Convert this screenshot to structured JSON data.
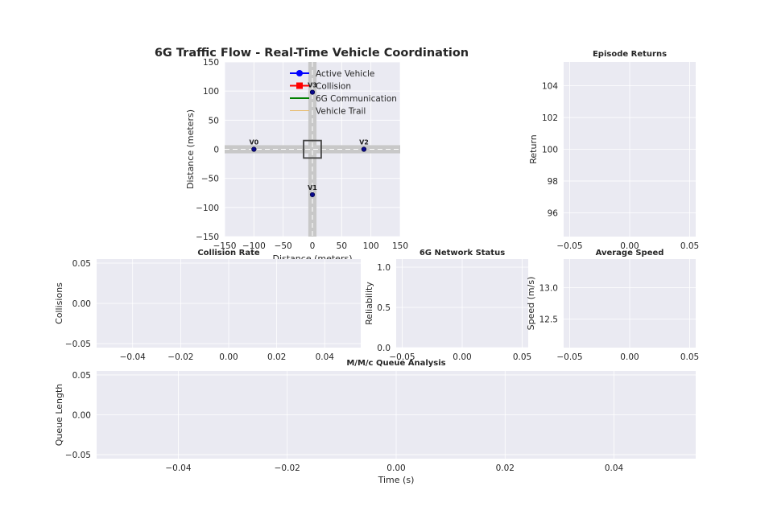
{
  "figure": {
    "background": "#ffffff",
    "axes_background": "#eaeaf2",
    "grid_color": "#ffffff"
  },
  "chart_data": [
    {
      "id": "traffic",
      "type": "scatter",
      "title": "6G Traffic Flow - Real-Time Vehicle Coordination",
      "xlabel": "Distance (meters)",
      "ylabel": "Distance (meters)",
      "xlim": [
        -150,
        150
      ],
      "ylim": [
        -150,
        150
      ],
      "xticks": [
        -150,
        -100,
        -50,
        0,
        50,
        100,
        150
      ],
      "yticks": [
        -150,
        -100,
        -50,
        0,
        50,
        100,
        150
      ],
      "tick_labels_x": [
        "−150",
        "−100",
        "−50",
        "0",
        "50",
        "100",
        "150"
      ],
      "tick_labels_y": [
        "−150",
        "−100",
        "−50",
        "0",
        "50",
        "100",
        "150"
      ],
      "grid": true,
      "road_color": "#c8c8c8",
      "intersection": {
        "half_size": 15,
        "color": "#444444"
      },
      "vehicles": [
        {
          "label": "V0",
          "x": -100,
          "y": 0
        },
        {
          "label": "V1",
          "x": 0,
          "y": -78
        },
        {
          "label": "V2",
          "x": 88,
          "y": 0
        },
        {
          "label": "V3",
          "x": 0,
          "y": 98
        }
      ],
      "vehicle_color": "#0a0a8c",
      "legend": {
        "position": "upper-center",
        "entries": [
          {
            "label": "Active Vehicle",
            "color": "#0000ff",
            "marker": "circle"
          },
          {
            "label": "Collision",
            "color": "#ff0000",
            "marker": "square"
          },
          {
            "label": "6G Communication",
            "color": "#008000",
            "marker": "none"
          },
          {
            "label": "Vehicle Trail",
            "color": "#e8b968",
            "marker": "none"
          }
        ]
      }
    },
    {
      "id": "returns",
      "type": "line",
      "title": "Episode Returns",
      "xlabel": "",
      "ylabel": "Return",
      "xlim": [
        -0.055,
        0.055
      ],
      "ylim": [
        94.5,
        105.5
      ],
      "xticks": [
        -0.05,
        0,
        0.05
      ],
      "yticks": [
        96,
        98,
        100,
        102,
        104
      ],
      "tick_labels_x": [
        "−0.05",
        "0.00",
        "0.05"
      ],
      "tick_labels_y": [
        "96",
        "98",
        "100",
        "102",
        "104"
      ],
      "grid": true,
      "series": []
    },
    {
      "id": "collision",
      "type": "line",
      "title": "Collision Rate",
      "xlabel": "",
      "ylabel": "Collisions",
      "xlim": [
        -0.055,
        0.055
      ],
      "ylim": [
        -0.055,
        0.055
      ],
      "xticks": [
        -0.04,
        -0.02,
        0,
        0.02,
        0.04
      ],
      "yticks": [
        -0.05,
        0,
        0.05
      ],
      "tick_labels_x": [
        "−0.04",
        "−0.02",
        "0.00",
        "0.02",
        "0.04"
      ],
      "tick_labels_y": [
        "−0.05",
        "0.00",
        "0.05"
      ],
      "grid": true,
      "series": []
    },
    {
      "id": "network",
      "type": "line",
      "title": "6G Network Status",
      "xlabel": "",
      "ylabel": "Reliability",
      "xlim": [
        -0.055,
        0.055
      ],
      "ylim": [
        0,
        1.1
      ],
      "xticks": [
        -0.05,
        0,
        0.05
      ],
      "yticks": [
        0,
        0.5,
        1
      ],
      "tick_labels_x": [
        "−0.05",
        "0.00",
        "0.05"
      ],
      "tick_labels_y": [
        "0.0",
        "0.5",
        "1.0"
      ],
      "grid": true,
      "series": []
    },
    {
      "id": "speed",
      "type": "line",
      "title": "Average Speed",
      "xlabel": "",
      "ylabel": "Speed (m/s)",
      "xlim": [
        -0.055,
        0.055
      ],
      "ylim": [
        12.05,
        13.45
      ],
      "xticks": [
        -0.05,
        0,
        0.05
      ],
      "yticks": [
        12.5,
        13
      ],
      "tick_labels_x": [
        "−0.05",
        "0.00",
        "0.05"
      ],
      "tick_labels_y": [
        "12.5",
        "13.0"
      ],
      "grid": true,
      "series": []
    },
    {
      "id": "queue",
      "type": "line",
      "title": "M/M/c Queue Analysis",
      "xlabel": "Time (s)",
      "ylabel": "Queue Length",
      "xlim": [
        -0.055,
        0.055
      ],
      "ylim": [
        -0.055,
        0.055
      ],
      "xticks": [
        -0.04,
        -0.02,
        0,
        0.02,
        0.04
      ],
      "yticks": [
        -0.05,
        0,
        0.05
      ],
      "tick_labels_x": [
        "−0.04",
        "−0.02",
        "0.00",
        "0.02",
        "0.04"
      ],
      "tick_labels_y": [
        "−0.05",
        "0.00",
        "0.05"
      ],
      "grid": true,
      "series": []
    }
  ]
}
